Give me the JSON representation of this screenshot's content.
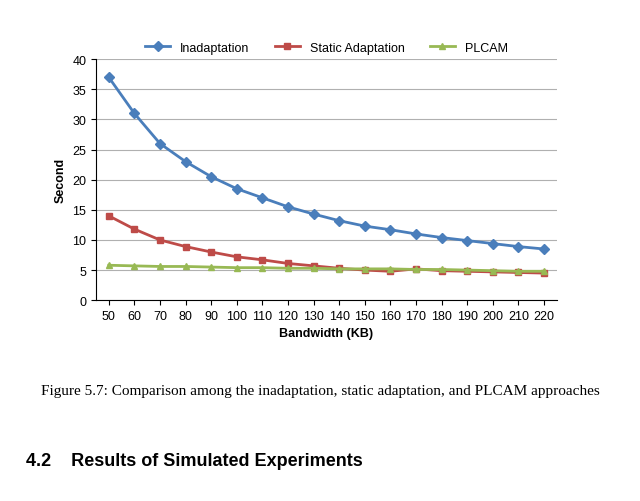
{
  "chart_data": {
    "type": "line",
    "x_label": "Bandwidth (KB)",
    "y_label": "Second",
    "categories": [
      "50",
      "60",
      "70",
      "80",
      "90",
      "100",
      "110",
      "120",
      "130",
      "140",
      "150",
      "160",
      "170",
      "180",
      "190",
      "200",
      "210",
      "220"
    ],
    "series": [
      {
        "name": "Inadaptation",
        "color": "#4a7ebb",
        "marker": "diamond",
        "values": [
          37,
          31,
          26,
          23,
          20.5,
          18.5,
          17,
          15.5,
          14.3,
          13.2,
          12.3,
          11.7,
          11,
          10.4,
          9.9,
          9.4,
          8.9,
          8.5
        ]
      },
      {
        "name": "Static Adaptation",
        "color": "#be4b48",
        "marker": "square",
        "values": [
          14,
          11.8,
          10,
          8.9,
          8,
          7.2,
          6.7,
          6.1,
          5.7,
          5.3,
          5.0,
          4.8,
          5.2,
          4.9,
          4.8,
          4.7,
          4.6,
          4.5
        ]
      },
      {
        "name": "PLCAM",
        "color": "#98b954",
        "marker": "triangle",
        "values": [
          5.8,
          5.7,
          5.6,
          5.6,
          5.5,
          5.4,
          5.4,
          5.3,
          5.3,
          5.2,
          5.2,
          5.2,
          5.1,
          5.1,
          5.0,
          4.9,
          4.8,
          4.8
        ]
      }
    ],
    "ylim": [
      0,
      40
    ],
    "yticks": [
      0,
      5,
      10,
      15,
      20,
      25,
      30,
      35,
      40
    ],
    "grid": true,
    "legend": "upper center"
  },
  "caption": "Figure 5.7: Comparison among the inadaptation, static adaptation, and PLCAM approaches",
  "heading": "4.2    Results of Simulated Experiments"
}
